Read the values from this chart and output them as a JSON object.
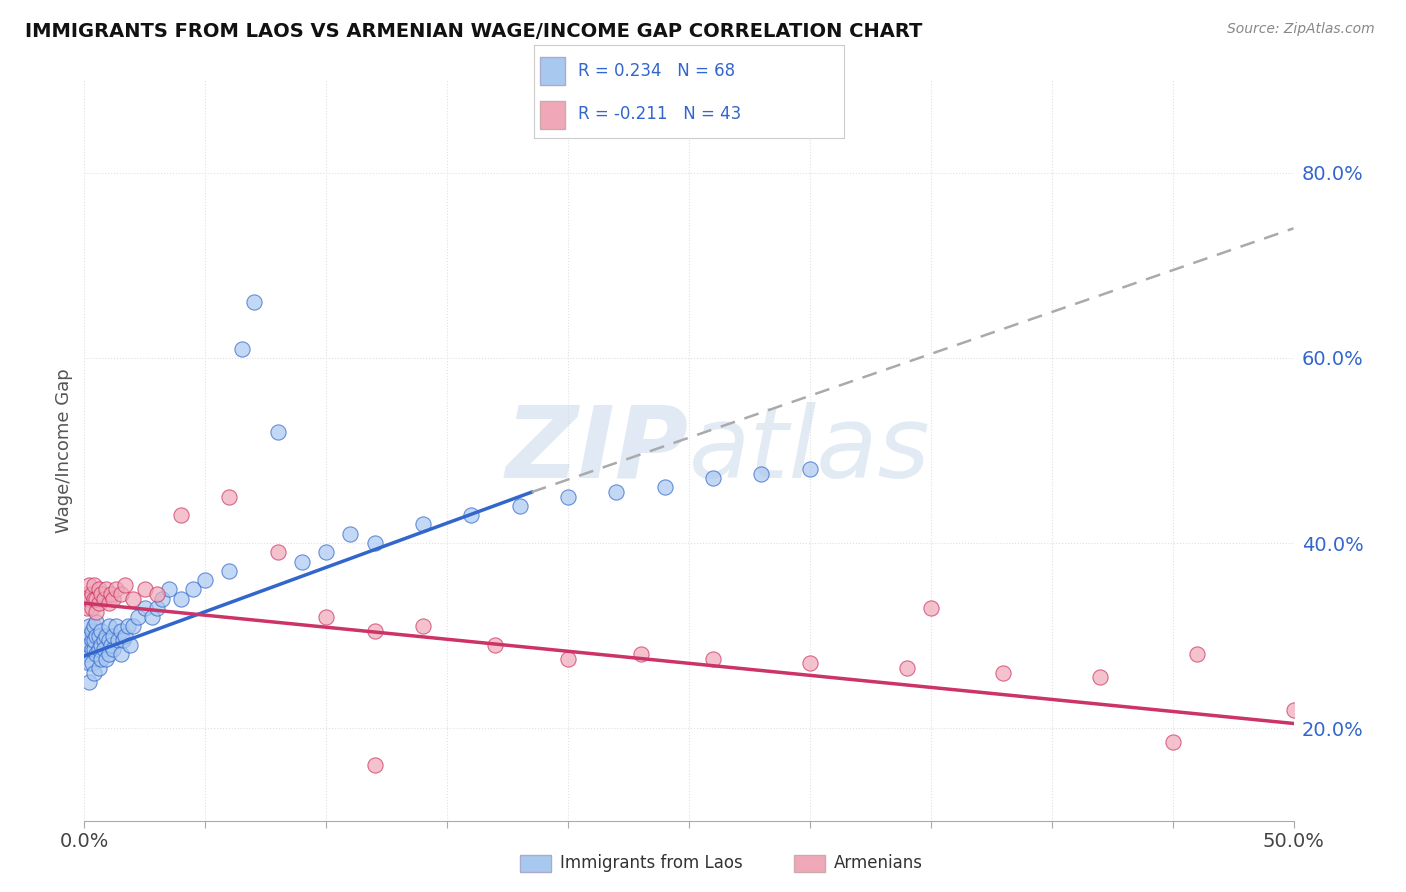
{
  "title": "IMMIGRANTS FROM LAOS VS ARMENIAN WAGE/INCOME GAP CORRELATION CHART",
  "source": "Source: ZipAtlas.com",
  "ylabel": "Wage/Income Gap",
  "xlim": [
    0.0,
    0.5
  ],
  "ylim": [
    0.1,
    0.9
  ],
  "xticks": [
    0.0,
    0.05,
    0.1,
    0.15,
    0.2,
    0.25,
    0.3,
    0.35,
    0.4,
    0.45,
    0.5
  ],
  "yticks_right": [
    0.2,
    0.4,
    0.6,
    0.8
  ],
  "color_laos": "#a8c8f0",
  "color_armenian": "#f0a8b8",
  "color_laos_line": "#3366cc",
  "color_armenian_line": "#cc3366",
  "color_dashed": "#aaaaaa",
  "background_color": "#ffffff",
  "grid_color": "#e0e0e0",
  "watermark_zip": "ZIP",
  "watermark_atlas": "atlas",
  "laos_x": [
    0.001,
    0.001,
    0.002,
    0.002,
    0.002,
    0.002,
    0.003,
    0.003,
    0.003,
    0.003,
    0.004,
    0.004,
    0.004,
    0.004,
    0.005,
    0.005,
    0.005,
    0.006,
    0.006,
    0.006,
    0.007,
    0.007,
    0.007,
    0.008,
    0.008,
    0.009,
    0.009,
    0.01,
    0.01,
    0.01,
    0.011,
    0.012,
    0.012,
    0.013,
    0.014,
    0.015,
    0.015,
    0.016,
    0.017,
    0.018,
    0.019,
    0.02,
    0.022,
    0.025,
    0.028,
    0.03,
    0.032,
    0.035,
    0.04,
    0.045,
    0.05,
    0.06,
    0.065,
    0.07,
    0.08,
    0.09,
    0.1,
    0.11,
    0.12,
    0.14,
    0.16,
    0.18,
    0.2,
    0.22,
    0.24,
    0.26,
    0.28,
    0.3
  ],
  "laos_y": [
    0.28,
    0.3,
    0.29,
    0.31,
    0.25,
    0.27,
    0.285,
    0.295,
    0.305,
    0.27,
    0.285,
    0.295,
    0.31,
    0.26,
    0.28,
    0.3,
    0.315,
    0.285,
    0.3,
    0.265,
    0.29,
    0.305,
    0.275,
    0.295,
    0.285,
    0.3,
    0.275,
    0.295,
    0.28,
    0.31,
    0.29,
    0.285,
    0.3,
    0.31,
    0.295,
    0.28,
    0.305,
    0.295,
    0.3,
    0.31,
    0.29,
    0.31,
    0.32,
    0.33,
    0.32,
    0.33,
    0.34,
    0.35,
    0.34,
    0.35,
    0.36,
    0.37,
    0.61,
    0.66,
    0.52,
    0.38,
    0.39,
    0.41,
    0.4,
    0.42,
    0.43,
    0.44,
    0.45,
    0.455,
    0.46,
    0.47,
    0.475,
    0.48
  ],
  "armenian_x": [
    0.001,
    0.001,
    0.002,
    0.002,
    0.003,
    0.003,
    0.004,
    0.004,
    0.005,
    0.005,
    0.006,
    0.006,
    0.007,
    0.008,
    0.009,
    0.01,
    0.011,
    0.012,
    0.013,
    0.015,
    0.017,
    0.02,
    0.025,
    0.03,
    0.04,
    0.06,
    0.08,
    0.1,
    0.12,
    0.14,
    0.17,
    0.2,
    0.23,
    0.26,
    0.3,
    0.34,
    0.38,
    0.42,
    0.46,
    0.5,
    0.12,
    0.35,
    0.45
  ],
  "armenian_y": [
    0.33,
    0.345,
    0.34,
    0.355,
    0.33,
    0.345,
    0.34,
    0.355,
    0.325,
    0.34,
    0.35,
    0.335,
    0.345,
    0.34,
    0.35,
    0.335,
    0.345,
    0.34,
    0.35,
    0.345,
    0.355,
    0.34,
    0.35,
    0.345,
    0.43,
    0.45,
    0.39,
    0.32,
    0.305,
    0.31,
    0.29,
    0.275,
    0.28,
    0.275,
    0.27,
    0.265,
    0.26,
    0.255,
    0.28,
    0.22,
    0.16,
    0.33,
    0.185
  ],
  "laos_trend_x": [
    0.0,
    0.185
  ],
  "laos_trend_y": [
    0.278,
    0.455
  ],
  "dashed_trend_x": [
    0.185,
    0.5
  ],
  "dashed_trend_y": [
    0.455,
    0.74
  ],
  "armenian_trend_x": [
    0.0,
    0.5
  ],
  "armenian_trend_y": [
    0.335,
    0.205
  ]
}
